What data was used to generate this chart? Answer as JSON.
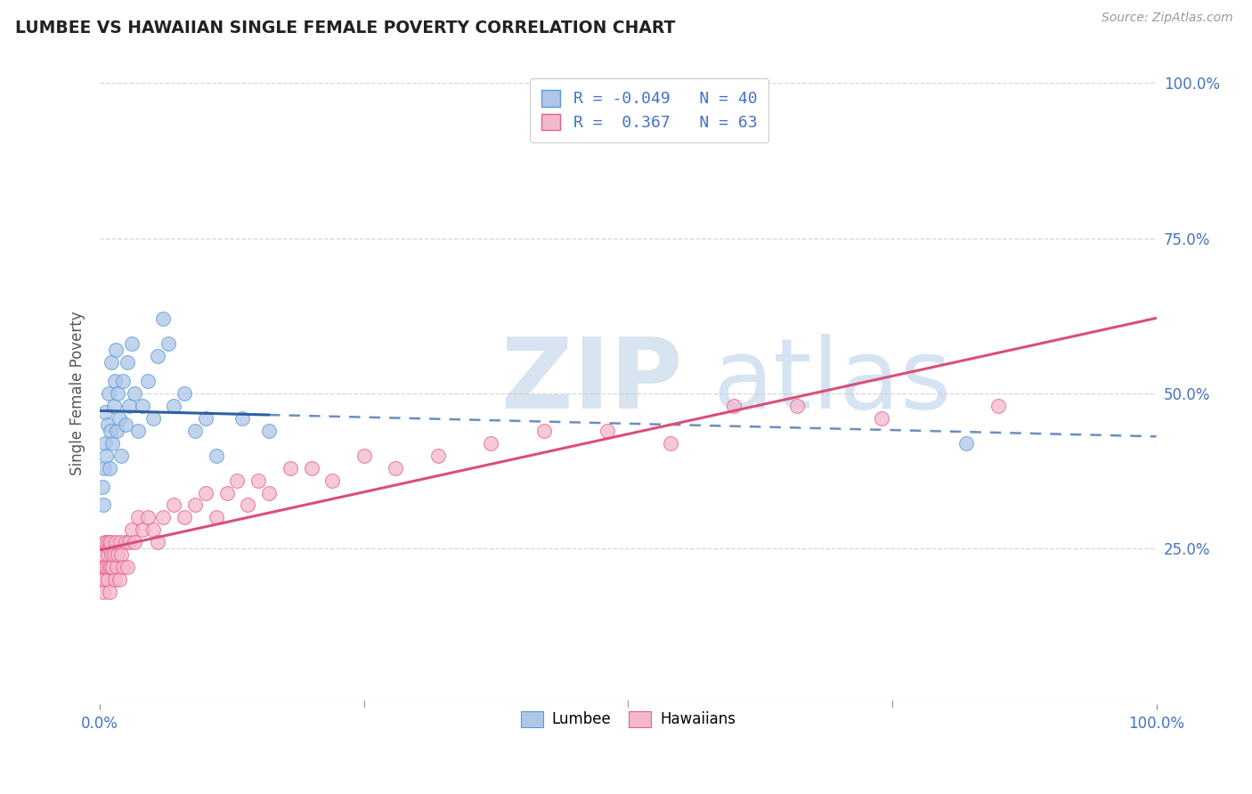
{
  "title": "LUMBEE VS HAWAIIAN SINGLE FEMALE POVERTY CORRELATION CHART",
  "source": "Source: ZipAtlas.com",
  "ylabel": "Single Female Poverty",
  "legend_labels": [
    "Lumbee",
    "Hawaiians"
  ],
  "lumbee_R": -0.049,
  "lumbee_N": 40,
  "hawaiian_R": 0.367,
  "hawaiian_N": 63,
  "lumbee_color": "#aec6e8",
  "hawaiian_color": "#f4b8cc",
  "lumbee_edge_color": "#5b9bd5",
  "hawaiian_edge_color": "#e8608a",
  "lumbee_line_color": "#2e5fa3",
  "hawaiian_line_color": "#d94f7a",
  "background_color": "#ffffff",
  "grid_color": "#cccccc",
  "tick_color": "#4472c4",
  "title_color": "#222222",
  "ylabel_color": "#555555",
  "source_color": "#999999",
  "xmin": 0.0,
  "xmax": 1.0,
  "ymin": 0.0,
  "ymax": 1.0,
  "lumbee_x": [
    0.002,
    0.003,
    0.004,
    0.005,
    0.005,
    0.006,
    0.007,
    0.008,
    0.009,
    0.01,
    0.011,
    0.012,
    0.013,
    0.014,
    0.015,
    0.016,
    0.017,
    0.018,
    0.02,
    0.022,
    0.024,
    0.026,
    0.028,
    0.03,
    0.033,
    0.036,
    0.04,
    0.045,
    0.05,
    0.055,
    0.06,
    0.065,
    0.07,
    0.08,
    0.09,
    0.1,
    0.11,
    0.135,
    0.16,
    0.82
  ],
  "lumbee_y": [
    0.35,
    0.32,
    0.38,
    0.42,
    0.47,
    0.4,
    0.45,
    0.5,
    0.38,
    0.44,
    0.55,
    0.42,
    0.48,
    0.52,
    0.57,
    0.44,
    0.5,
    0.46,
    0.4,
    0.52,
    0.45,
    0.55,
    0.48,
    0.58,
    0.5,
    0.44,
    0.48,
    0.52,
    0.46,
    0.56,
    0.62,
    0.58,
    0.48,
    0.5,
    0.44,
    0.46,
    0.4,
    0.46,
    0.44,
    0.42
  ],
  "hawaiian_x": [
    0.002,
    0.003,
    0.003,
    0.004,
    0.004,
    0.005,
    0.005,
    0.006,
    0.006,
    0.007,
    0.007,
    0.008,
    0.008,
    0.009,
    0.009,
    0.01,
    0.01,
    0.011,
    0.012,
    0.013,
    0.014,
    0.015,
    0.016,
    0.017,
    0.018,
    0.019,
    0.02,
    0.022,
    0.024,
    0.026,
    0.028,
    0.03,
    0.033,
    0.036,
    0.04,
    0.045,
    0.05,
    0.055,
    0.06,
    0.07,
    0.08,
    0.09,
    0.1,
    0.11,
    0.12,
    0.13,
    0.14,
    0.15,
    0.16,
    0.18,
    0.2,
    0.22,
    0.25,
    0.28,
    0.32,
    0.37,
    0.42,
    0.48,
    0.54,
    0.6,
    0.66,
    0.74,
    0.85
  ],
  "hawaiian_y": [
    0.2,
    0.22,
    0.18,
    0.24,
    0.2,
    0.22,
    0.26,
    0.22,
    0.26,
    0.2,
    0.24,
    0.22,
    0.26,
    0.18,
    0.25,
    0.22,
    0.26,
    0.24,
    0.22,
    0.24,
    0.2,
    0.26,
    0.22,
    0.24,
    0.2,
    0.26,
    0.24,
    0.22,
    0.26,
    0.22,
    0.26,
    0.28,
    0.26,
    0.3,
    0.28,
    0.3,
    0.28,
    0.26,
    0.3,
    0.32,
    0.3,
    0.32,
    0.34,
    0.3,
    0.34,
    0.36,
    0.32,
    0.36,
    0.34,
    0.38,
    0.38,
    0.36,
    0.4,
    0.38,
    0.4,
    0.42,
    0.44,
    0.44,
    0.42,
    0.48,
    0.48,
    0.46,
    0.48
  ]
}
